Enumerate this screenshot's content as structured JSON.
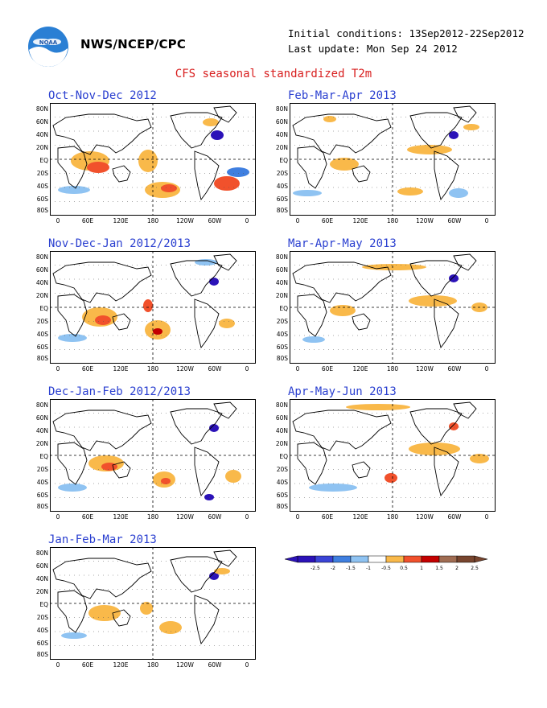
{
  "header": {
    "agency": "NWS/NCEP/CPC",
    "initial_conditions": "Initial conditions: 13Sep2012-22Sep2012",
    "last_update": "Last update: Mon Sep 24 2012",
    "title": "CFS seasonal standardized T2m",
    "logo_text": "NOAA"
  },
  "axes": {
    "lat_labels": [
      "80N",
      "60N",
      "40N",
      "20N",
      "EQ",
      "20S",
      "40S",
      "60S",
      "80S"
    ],
    "lon_labels": [
      "0",
      "60E",
      "120E",
      "180",
      "120W",
      "60W",
      "0"
    ]
  },
  "panels": [
    {
      "title": "Oct-Nov-Dec 2012"
    },
    {
      "title": "Feb-Mar-Apr 2013"
    },
    {
      "title": "Nov-Dec-Jan 2012/2013"
    },
    {
      "title": "Mar-Apr-May 2013"
    },
    {
      "title": "Dec-Jan-Feb 2012/2013"
    },
    {
      "title": "Apr-May-Jun 2013"
    },
    {
      "title": "Jan-Feb-Mar 2013"
    }
  ],
  "colorbar": {
    "labels": [
      "-2.5",
      "-2",
      "-1.5",
      "-1",
      "-0.5",
      "0.5",
      "1",
      "1.5",
      "2",
      "2.5"
    ],
    "colors": [
      "#2b12b8",
      "#3a44d6",
      "#3f7fe0",
      "#8fc3f2",
      "#ffffff",
      "#f9b94a",
      "#f1512c",
      "#c40000",
      "#a06c52",
      "#78452e"
    ]
  },
  "colors": {
    "title_red": "#d81e1e",
    "panel_title_blue": "#2a3fd0",
    "warm_1": "#f9b94a",
    "warm_2": "#f1512c",
    "warm_3": "#c40000",
    "cool_1": "#8fc3f2",
    "cool_2": "#3f7fe0",
    "cool_3": "#2b12b8"
  }
}
